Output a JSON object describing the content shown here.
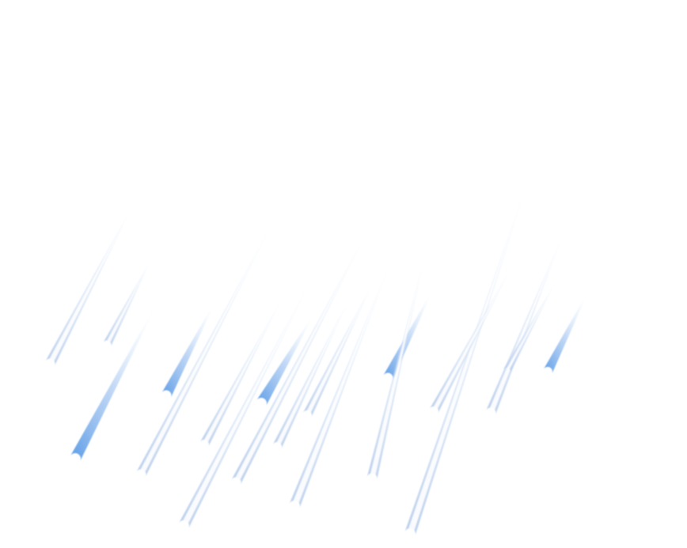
{
  "scene": {
    "background_color": "#ffffff",
    "subject": "rain-streaks",
    "colors": {
      "outline_streak_edge": "#c8d7ee",
      "outline_streak_core": "#ffffff",
      "solid_streak_tip": "#5b9be6",
      "solid_streak_tail": "#e6f0fc"
    },
    "streak_count": 22
  }
}
